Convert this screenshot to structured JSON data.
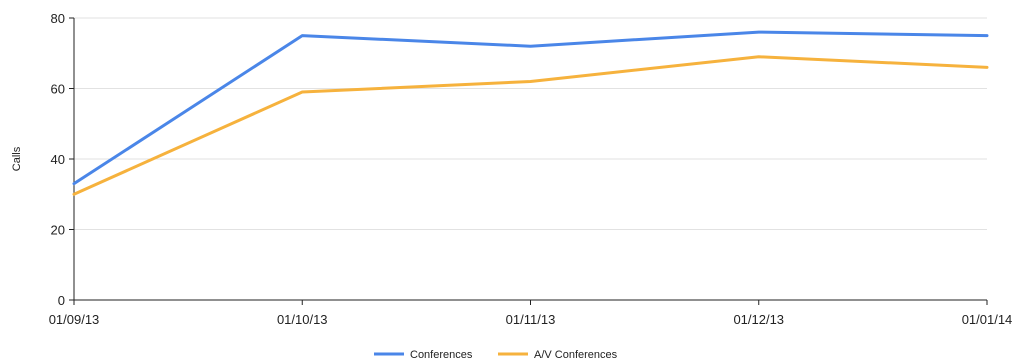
{
  "chart_data": {
    "type": "line",
    "title": "",
    "xlabel": "",
    "ylabel": "Calls",
    "categories": [
      "01/09/13",
      "01/10/13",
      "01/11/13",
      "01/12/13",
      "01/01/14"
    ],
    "ylim": [
      0,
      80
    ],
    "yticks": [
      0,
      20,
      40,
      60,
      80
    ],
    "grid": true,
    "legend_position": "bottom",
    "series": [
      {
        "name": "Conferences",
        "values": [
          33,
          75,
          72,
          76,
          75
        ],
        "color": "#4a86e8"
      },
      {
        "name": "A/V Conferences",
        "values": [
          30,
          59,
          62,
          69,
          66
        ],
        "color": "#f6b23d"
      }
    ]
  }
}
